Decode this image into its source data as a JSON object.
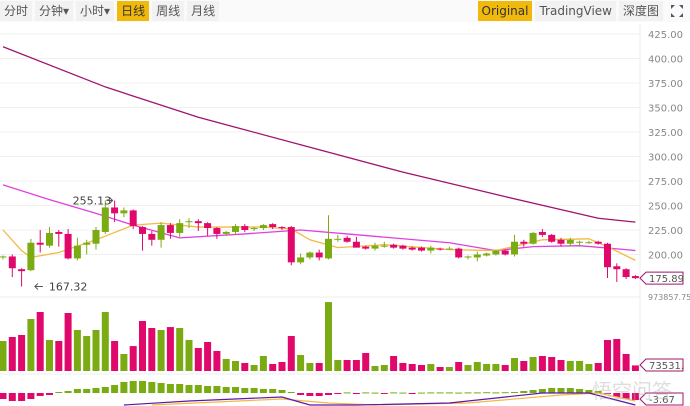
{
  "toolbar": {
    "left": [
      "分时",
      "分钟▾",
      "小时▾",
      "日线",
      "周线",
      "月线"
    ],
    "active_left": "日线",
    "right": [
      "Original",
      "TradingView",
      "深度图"
    ],
    "active_right": "Original",
    "fullscreen_icon": "fullscreen-icon"
  },
  "watermark": "悟空问答",
  "colors": {
    "up": "#7aab13",
    "down": "#e0096b",
    "ma_short": "#f5b942",
    "ma_mid": "#e040e0",
    "ma_long": "#a0146e",
    "dif": "#5a1aa8",
    "dea": "#f5b942",
    "active": "#f0b90b"
  },
  "chart_data": [
    {
      "type": "candlestick",
      "price_ticks": [
        "425.00",
        "400.00",
        "375.00",
        "350.00",
        "325.00",
        "300.00",
        "275.00",
        "250.00",
        "225.00",
        "200.00"
      ],
      "ylim": [
        167,
        430
      ],
      "grid": true,
      "last_price_label": "175.89",
      "high_annotation": {
        "index": 12,
        "label": "255.13"
      },
      "low_annotation": {
        "index": 3,
        "label": "167.32"
      },
      "candles": [
        [
          197,
          199,
          195,
          198
        ],
        [
          198,
          200,
          177,
          186
        ],
        [
          185,
          186,
          167.32,
          183
        ],
        [
          184,
          216,
          183,
          212
        ],
        [
          212,
          225,
          202,
          210
        ],
        [
          209,
          228,
          207,
          222
        ],
        [
          223,
          225,
          208,
          221
        ],
        [
          221,
          226,
          195,
          196
        ],
        [
          196,
          217,
          194,
          209
        ],
        [
          210,
          215,
          200,
          212
        ],
        [
          211,
          228,
          205,
          225
        ],
        [
          223,
          255.13,
          221,
          248
        ],
        [
          248,
          255,
          233,
          242
        ],
        [
          242,
          248,
          238,
          245
        ],
        [
          245,
          246,
          226,
          229
        ],
        [
          228,
          229,
          204,
          221
        ],
        [
          221,
          224,
          209,
          215
        ],
        [
          215,
          233,
          207,
          230
        ],
        [
          230,
          232,
          216,
          222
        ],
        [
          222,
          236,
          218,
          232
        ],
        [
          233,
          237,
          227,
          234
        ],
        [
          234,
          236,
          224,
          232
        ],
        [
          232,
          233,
          219,
          227
        ],
        [
          227,
          228,
          216,
          221
        ],
        [
          221,
          224,
          219,
          223
        ],
        [
          223,
          231,
          220,
          229
        ],
        [
          229,
          231,
          223,
          225
        ],
        [
          226,
          228,
          224,
          227
        ],
        [
          227,
          231,
          225,
          230
        ],
        [
          231,
          232,
          226,
          228
        ],
        [
          228,
          229,
          225,
          227
        ],
        [
          228,
          229,
          189,
          192
        ],
        [
          192,
          201,
          190,
          197
        ],
        [
          197,
          203,
          195,
          202
        ],
        [
          202,
          205,
          194,
          197
        ],
        [
          196,
          240,
          195,
          216
        ],
        [
          216,
          220,
          213,
          216
        ],
        [
          217,
          219,
          212,
          213
        ],
        [
          213,
          218,
          208,
          207
        ],
        [
          208,
          209,
          205,
          206
        ],
        [
          206,
          212,
          204,
          209
        ],
        [
          209,
          213,
          207,
          209
        ],
        [
          210,
          211,
          206,
          207
        ],
        [
          209,
          210,
          205,
          206
        ],
        [
          207,
          208,
          204,
          205
        ],
        [
          207,
          208,
          203,
          204
        ],
        [
          204,
          209,
          201,
          207
        ],
        [
          206,
          207,
          204,
          205
        ],
        [
          206,
          208,
          205,
          206
        ],
        [
          206,
          207,
          196,
          197
        ],
        [
          197,
          199,
          195,
          198
        ],
        [
          197,
          203,
          193,
          200
        ],
        [
          199,
          202,
          198,
          201
        ],
        [
          200,
          205,
          199,
          204
        ],
        [
          204,
          205,
          199,
          200
        ],
        [
          200,
          220,
          198,
          213
        ],
        [
          213,
          215,
          208,
          211
        ],
        [
          211,
          223,
          210,
          222
        ],
        [
          223,
          226,
          218,
          220
        ],
        [
          220,
          221,
          212,
          213
        ],
        [
          215,
          217,
          208,
          211
        ],
        [
          211,
          217,
          208,
          215
        ],
        [
          213,
          214,
          208,
          213
        ],
        [
          212,
          214,
          211,
          212.5
        ],
        [
          213,
          214,
          210,
          211
        ],
        [
          211,
          212,
          176,
          187
        ],
        [
          188,
          191,
          172,
          185
        ],
        [
          185,
          186,
          175,
          177
        ],
        [
          178,
          179,
          175,
          175.89
        ]
      ],
      "ma_lines": [
        {
          "key": "ma_long",
          "points": [
            [
              0,
              412
            ],
            [
              11,
              371
            ],
            [
              21,
              340
            ],
            [
              32,
              312
            ],
            [
              43,
              284
            ],
            [
              54,
              259
            ],
            [
              64,
              237
            ],
            [
              68,
              233
            ]
          ]
        },
        {
          "key": "ma_mid",
          "points": [
            [
              0,
              271
            ],
            [
              5,
              256
            ],
            [
              10,
              242
            ],
            [
              14,
              230
            ],
            [
              19,
              217
            ],
            [
              26,
              221
            ],
            [
              32,
              225
            ],
            [
              37,
              221
            ],
            [
              48,
              212
            ],
            [
              53,
              204
            ],
            [
              57,
              208
            ],
            [
              62,
              209
            ],
            [
              67,
              205
            ],
            [
              68,
              204
            ]
          ]
        },
        {
          "key": "ma_short",
          "points": [
            [
              0,
              225
            ],
            [
              2,
              204
            ],
            [
              3,
              197
            ],
            [
              6,
              202
            ],
            [
              10,
              215
            ],
            [
              14,
              230
            ],
            [
              17,
              232
            ],
            [
              21,
              228
            ],
            [
              28,
              228
            ],
            [
              31,
              226
            ],
            [
              33,
              215
            ],
            [
              36,
              207
            ],
            [
              41,
              210
            ],
            [
              48,
              205
            ],
            [
              53,
              204
            ],
            [
              58,
              215
            ],
            [
              63,
              216
            ],
            [
              65,
              208
            ],
            [
              68,
              194
            ]
          ]
        }
      ]
    },
    {
      "type": "bar",
      "name": "volume",
      "max_label": "973857.75",
      "ylim": [
        0,
        973857.75
      ],
      "last_label": "73531.",
      "values": [
        394800,
        447400,
        473800,
        684300,
        776400,
        407900,
        394800,
        763200,
        539600,
        460600,
        539600,
        776400,
        394800,
        223700,
        328000,
        657900,
        565900,
        539600,
        578100,
        565900,
        407900,
        302600,
        381700,
        263200,
        157900,
        131600,
        105300,
        78900,
        197400,
        92100,
        118400,
        460600,
        210500,
        105300,
        105300,
        907000,
        144800,
        144800,
        144800,
        236900,
        65800,
        78900,
        197400,
        105300,
        92100,
        78900,
        92100,
        52600,
        52600,
        118400,
        78900,
        118400,
        92100,
        92100,
        78900,
        171100,
        131600,
        184200,
        197400,
        184200,
        144800,
        131600,
        131600,
        92100,
        105300,
        407900,
        421100,
        223700,
        73531
      ],
      "colors_by": "candle direction"
    },
    {
      "type": "macd",
      "last_label": "-3.67",
      "histogram": [
        -3,
        -4,
        -4,
        -3,
        -1.5,
        -1,
        0.5,
        1,
        2,
        2,
        2.5,
        3,
        4,
        5.5,
        6,
        6,
        5.5,
        5,
        4.5,
        4.5,
        4,
        4,
        3.5,
        3.5,
        3,
        3,
        2.5,
        2.5,
        2,
        2,
        1.5,
        0.5,
        -1,
        -1.5,
        -1.5,
        -1,
        -0.5,
        0.3,
        -0.3,
        0.3,
        0.2,
        -0.2,
        0.3,
        0.2,
        -0.3,
        0.2,
        0.3,
        0.3,
        0.3,
        0.2,
        0.3,
        0.3,
        0.4,
        0.3,
        0.4,
        0.5,
        1,
        1.5,
        2,
        2.5,
        2.5,
        2.5,
        2,
        1.5,
        1,
        -0.5,
        -2,
        -3,
        -3.5
      ],
      "dif": [
        [
          13,
          -6
        ],
        [
          20,
          -4
        ],
        [
          30,
          -2
        ],
        [
          33,
          -6
        ],
        [
          38,
          -6
        ],
        [
          48,
          -5
        ],
        [
          58,
          0
        ],
        [
          63,
          0
        ],
        [
          68,
          -6
        ]
      ],
      "dea": [
        [
          16,
          -6
        ],
        [
          30,
          -3
        ],
        [
          35,
          -5
        ],
        [
          40,
          -6
        ],
        [
          50,
          -5
        ],
        [
          60,
          -1
        ],
        [
          64,
          0
        ],
        [
          68,
          -4
        ]
      ]
    }
  ]
}
